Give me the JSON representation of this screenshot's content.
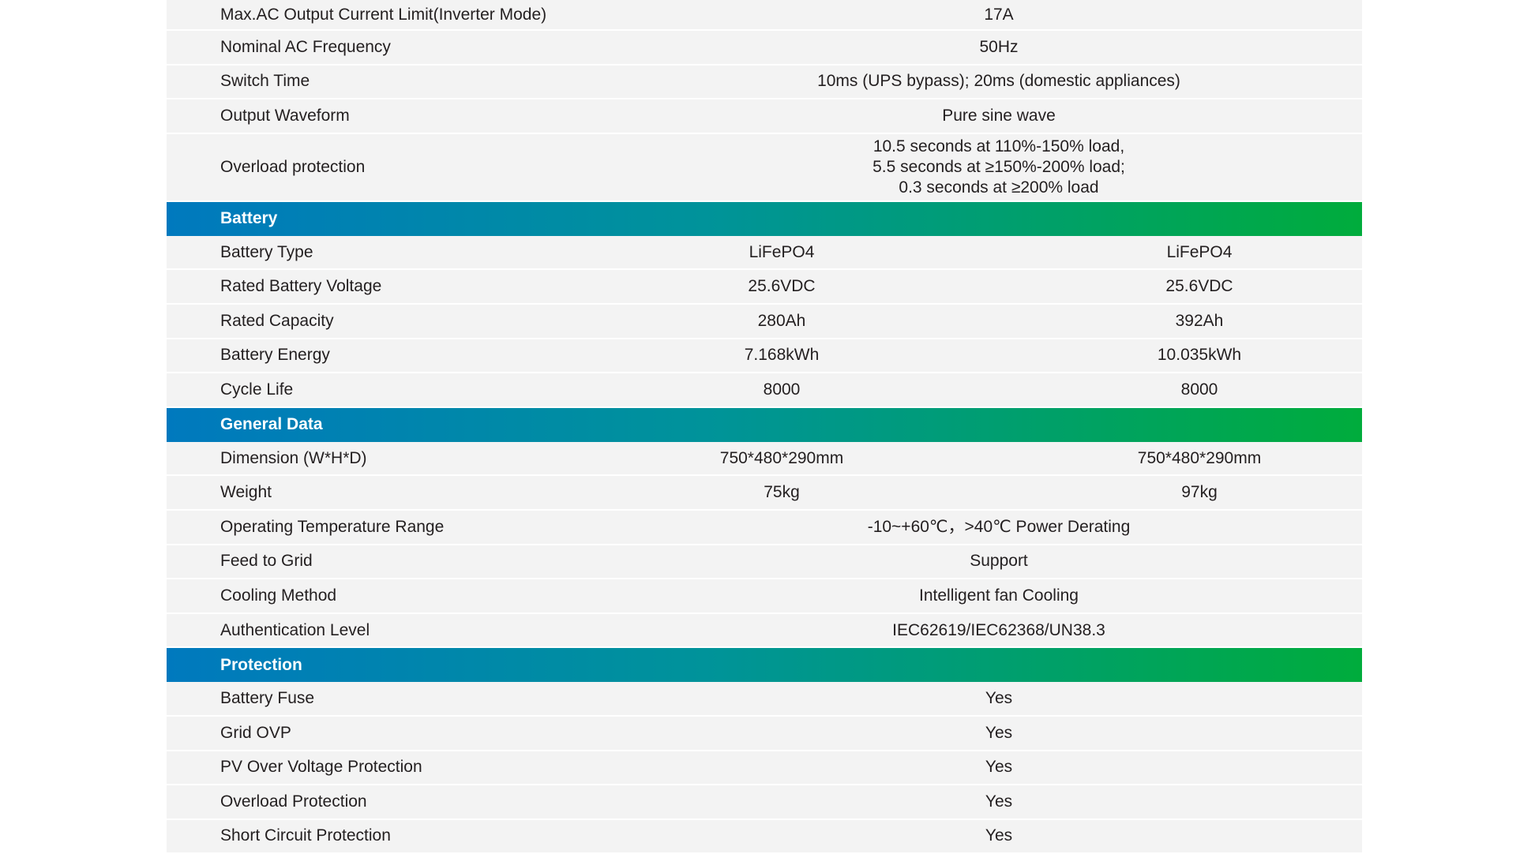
{
  "colors": {
    "header_start": "#0079be",
    "header_end": "#00ac3c",
    "row_bg": "#f3f3f3",
    "text": "#231f20"
  },
  "rows": [
    {
      "type": "spec",
      "label": "Max.AC Output Current Limit(Inverter Mode)",
      "values": [
        "17A"
      ]
    },
    {
      "type": "spec",
      "label": "Nominal AC Frequency",
      "values": [
        "50Hz"
      ]
    },
    {
      "type": "spec",
      "label": "Switch Time",
      "values": [
        "10ms (UPS bypass); 20ms (domestic appliances)"
      ]
    },
    {
      "type": "spec",
      "label": "Output Waveform",
      "values": [
        "Pure sine wave"
      ]
    },
    {
      "type": "spec",
      "label": "Overload protection",
      "tall": true,
      "values": [
        "10.5 seconds at 110%-150% load,\n5.5 seconds at ≥150%-200% load;\n0.3 seconds at ≥200% load"
      ]
    },
    {
      "type": "section",
      "label": "Battery"
    },
    {
      "type": "spec",
      "label": "Battery Type",
      "values": [
        "LiFePO4",
        "LiFePO4"
      ]
    },
    {
      "type": "spec",
      "label": "Rated Battery Voltage",
      "values": [
        "25.6VDC",
        "25.6VDC"
      ]
    },
    {
      "type": "spec",
      "label": "Rated Capacity",
      "values": [
        "280Ah",
        "392Ah"
      ]
    },
    {
      "type": "spec",
      "label": "Battery Energy",
      "values": [
        "7.168kWh",
        "10.035kWh"
      ]
    },
    {
      "type": "spec",
      "label": "Cycle Life",
      "values": [
        "8000",
        "8000"
      ]
    },
    {
      "type": "section",
      "label": "General Data"
    },
    {
      "type": "spec",
      "label": "Dimension (W*H*D)",
      "values": [
        "750*480*290mm",
        "750*480*290mm"
      ]
    },
    {
      "type": "spec",
      "label": "Weight",
      "values": [
        "75kg",
        "97kg"
      ]
    },
    {
      "type": "spec",
      "label": "Operating Temperature Range",
      "values": [
        "-10~+60℃，>40℃ Power Derating"
      ]
    },
    {
      "type": "spec",
      "label": "Feed to Grid",
      "values": [
        "Support"
      ]
    },
    {
      "type": "spec",
      "label": "Cooling Method",
      "values": [
        "Intelligent fan Cooling"
      ]
    },
    {
      "type": "spec",
      "label": "Authentication Level",
      "values": [
        "IEC62619/IEC62368/UN38.3"
      ]
    },
    {
      "type": "section",
      "label": "Protection"
    },
    {
      "type": "spec",
      "label": "Battery Fuse",
      "values": [
        "Yes"
      ]
    },
    {
      "type": "spec",
      "label": "Grid OVP",
      "values": [
        "Yes"
      ]
    },
    {
      "type": "spec",
      "label": "PV Over Voltage Protection",
      "values": [
        "Yes"
      ]
    },
    {
      "type": "spec",
      "label": "Overload Protection",
      "values": [
        "Yes"
      ]
    },
    {
      "type": "spec",
      "label": "Short Circuit Protection",
      "values": [
        "Yes"
      ]
    }
  ]
}
